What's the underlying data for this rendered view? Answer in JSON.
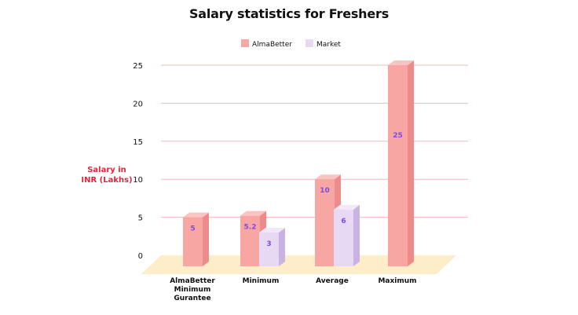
{
  "chart_data": {
    "type": "bar",
    "title": "Salary statistics for Freshers",
    "ylabel_lines": [
      "Salary in",
      "INR (Lakhs)"
    ],
    "xlabel": "",
    "ylim": [
      0,
      25
    ],
    "yticks": [
      0,
      5,
      10,
      15,
      20,
      25
    ],
    "grid": true,
    "legend_position": "top-center",
    "categories": [
      [
        "AlmaBetter",
        "Minimum",
        "Gurantee"
      ],
      [
        "Minimum"
      ],
      [
        "Average"
      ],
      [
        "Maximum"
      ]
    ],
    "series": [
      {
        "name": "AlmaBetter",
        "color": "#f8a6a4",
        "side_color": "#ec8b89",
        "top_color": "#fbc4c2",
        "values": [
          5,
          5.2,
          10,
          25
        ],
        "labels": [
          "5",
          "5.2",
          "10",
          "25"
        ]
      },
      {
        "name": "Market",
        "color": "#e7d8f4",
        "side_color": "#c8b3e3",
        "top_color": "#f1e8f9",
        "values": [
          null,
          3,
          6,
          null
        ],
        "labels": [
          "",
          "3",
          "6",
          ""
        ]
      }
    ],
    "floor_color": "#fdedc8",
    "grid_color": "#f6b9b6",
    "label_color": "#7b4be6"
  }
}
